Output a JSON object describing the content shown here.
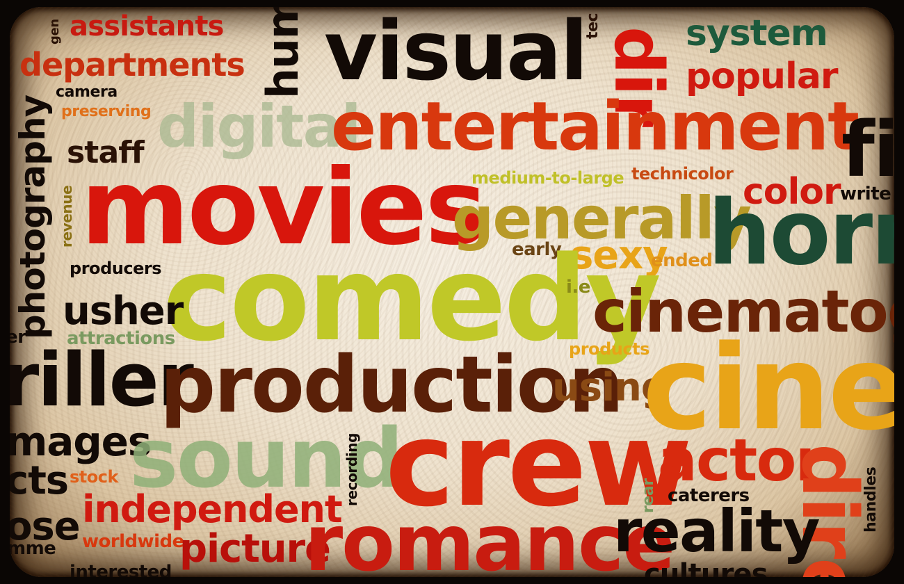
{
  "words": {
    "gen": "gen",
    "assistants": "assistants",
    "departments": "departments",
    "camera": "camera",
    "preserving": "preserving",
    "hum": "hum",
    "visual": "visual",
    "tec": "tec",
    "dir": "dir",
    "system": "system",
    "popular": "popular",
    "digital": "digital",
    "entertainment": "entertainment",
    "staff": "staff",
    "photography": "photography",
    "revenue": "revenue",
    "movies": "movies",
    "medium_to_large": "medium-to-large",
    "technicolor": "technicolor",
    "color": "color",
    "write": "write",
    "fi": "fi",
    "generally": "generally",
    "horr": "horr",
    "early": "early",
    "sexy": "sexy",
    "ended": "ended",
    "producers": "producers",
    "comedy": "comedy",
    "ie": "i.e",
    "cinematogra": "cinematogra",
    "usher": "usher",
    "er": "er",
    "attractions": "attractions",
    "products": "products",
    "riller": "riller",
    "production": "production",
    "using": "using",
    "cine": "cine",
    "mages": "mages",
    "sound": "sound",
    "recording": "recording",
    "crew": "crew",
    "actor": "actor",
    "cts": "cts",
    "stock": "stock",
    "dire": "dire",
    "handles": "handles",
    "rear": "rear",
    "caterers": "caterers",
    "independent": "independent",
    "ose": "ose",
    "worldwide": "worldwide",
    "mme": "mme",
    "picture": "picture",
    "romance": "romance",
    "reality": "reality",
    "interested": "interested",
    "cultures": "cultures"
  },
  "colors": {
    "red": "#d8160c",
    "red_dark": "#b8100a",
    "orange": "#e0501a",
    "amber": "#e8a418",
    "yellow_green": "#c8c828",
    "olive": "#a8a020",
    "green_faded": "#8fb078",
    "dark_green": "#1d5a3c",
    "brown": "#6a2408",
    "brown_mid": "#8a4a14",
    "black": "#120a06"
  }
}
